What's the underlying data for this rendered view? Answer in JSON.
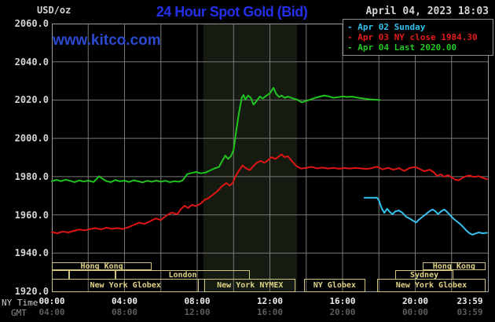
{
  "header": {
    "unit": "USD/oz",
    "title": "24 Hour Spot Gold (Bid)",
    "datetime": "April 04, 2023 18:03",
    "watermark": "www.kitco.com"
  },
  "legend": {
    "items": [
      {
        "label": "- Apr 02 Sunday",
        "color": "#35c0ee"
      },
      {
        "label": "- Apr 03 NY close 1984.30",
        "color": "#e51b1b"
      },
      {
        "label": "- Apr 04 Last 2020.00",
        "color": "#25c725"
      }
    ]
  },
  "axis": {
    "ny_time_label": "NY Time",
    "gmt_label": "GMT",
    "y_ticks": [
      {
        "value": 2060,
        "label": "2060.0"
      },
      {
        "value": 2040,
        "label": "2040.0"
      },
      {
        "value": 2020,
        "label": "2020.0"
      },
      {
        "value": 2000,
        "label": "2000.0"
      },
      {
        "value": 1980,
        "label": "1980.0"
      },
      {
        "value": 1960,
        "label": "1960.0"
      },
      {
        "value": 1940,
        "label": "1940.0"
      },
      {
        "value": 1920,
        "label": "1920.0"
      }
    ],
    "ny_ticks": [
      {
        "hour": 0,
        "label": "00:00"
      },
      {
        "hour": 4,
        "label": "04:00"
      },
      {
        "hour": 8,
        "label": "08:00"
      },
      {
        "hour": 12,
        "label": "12:00"
      },
      {
        "hour": 16,
        "label": "16:00"
      },
      {
        "hour": 20,
        "label": "20:00"
      },
      {
        "hour": 23.983,
        "label": "23:59"
      }
    ],
    "gmt_ticks": [
      {
        "hour": 0,
        "label": "04:00"
      },
      {
        "hour": 4,
        "label": "08:00"
      },
      {
        "hour": 8,
        "label": "12:00"
      },
      {
        "hour": 12,
        "label": "16:00"
      },
      {
        "hour": 16,
        "label": "20:00"
      },
      {
        "hour": 20,
        "label": "00:00"
      },
      {
        "hour": 23.983,
        "label": "03:59"
      }
    ]
  },
  "sessions": [
    {
      "row": 1,
      "start": 0,
      "end": 5.5,
      "label": "Hong Kong"
    },
    {
      "row": 1,
      "start": 20.4,
      "end": 23.87,
      "label": "Hong Kong"
    },
    {
      "row": 2,
      "start": 0,
      "end": 0.95,
      "label": ""
    },
    {
      "row": 2,
      "start": 0.95,
      "end": 3.5,
      "label": ""
    },
    {
      "row": 2,
      "start": 3.5,
      "end": 10.9,
      "label": "London"
    },
    {
      "row": 2,
      "start": 18.9,
      "end": 22.1,
      "label": "Sydney"
    },
    {
      "row": 3,
      "start": 0,
      "end": 8.1,
      "label": "New York Globex"
    },
    {
      "row": 3,
      "start": 8.4,
      "end": 13.42,
      "label": "New York NYMEX"
    },
    {
      "row": 3,
      "start": 13.87,
      "end": 17.25,
      "label": "NY Globex"
    },
    {
      "row": 3,
      "start": 17.9,
      "end": 23.87,
      "label": "New York Globex"
    }
  ],
  "colors": {
    "background": "#000000",
    "grid": "#787878",
    "plot_border": "#9a9a9a",
    "highlight_band": "#151b10",
    "session_box": "#cfc27c",
    "title_blue": "#2430e8"
  },
  "chart_data": {
    "type": "line",
    "title": "24 Hour Spot Gold (Bid)",
    "x_unit": "hours, NY time",
    "x_range": [
      0,
      24
    ],
    "y_range": [
      1920,
      2060
    ],
    "ylabel": "USD/oz",
    "x_gridline_step_hours": 2,
    "y_gridline_step": 20,
    "grid": true,
    "legend_position": "top-right",
    "highlight_band_hours": {
      "start": 8.33,
      "end": 13.5
    },
    "series": [
      {
        "name": "Apr 02 Sunday",
        "color": "#35c0ee",
        "points": [
          [
            17.2,
            1969
          ],
          [
            17.5,
            1969
          ],
          [
            17.9,
            1969
          ],
          [
            18.0,
            1967.5
          ],
          [
            18.15,
            1963.5
          ],
          [
            18.3,
            1961
          ],
          [
            18.45,
            1963.2
          ],
          [
            18.6,
            1961.5
          ],
          [
            18.75,
            1960.3
          ],
          [
            18.9,
            1961.8
          ],
          [
            19.1,
            1962.3
          ],
          [
            19.3,
            1961
          ],
          [
            19.5,
            1959
          ],
          [
            19.7,
            1958
          ],
          [
            19.9,
            1956.8
          ],
          [
            20.05,
            1956
          ],
          [
            20.2,
            1957.5
          ],
          [
            20.4,
            1959
          ],
          [
            20.6,
            1960.5
          ],
          [
            20.8,
            1962
          ],
          [
            20.95,
            1962.8
          ],
          [
            21.1,
            1962
          ],
          [
            21.25,
            1960.4
          ],
          [
            21.45,
            1962
          ],
          [
            21.6,
            1962.8
          ],
          [
            21.75,
            1961.5
          ],
          [
            21.95,
            1959.5
          ],
          [
            22.1,
            1958
          ],
          [
            22.3,
            1956.5
          ],
          [
            22.5,
            1955
          ],
          [
            22.7,
            1953
          ],
          [
            22.85,
            1951.5
          ],
          [
            23.0,
            1950.3
          ],
          [
            23.15,
            1949.6
          ],
          [
            23.3,
            1950.2
          ],
          [
            23.5,
            1950.8
          ],
          [
            23.7,
            1950.4
          ],
          [
            23.95,
            1950.6
          ]
        ]
      },
      {
        "name": "Apr 03 NY close 1984.30",
        "color": "#df1414",
        "points": [
          [
            0,
            1951
          ],
          [
            0.3,
            1950.4
          ],
          [
            0.6,
            1951.3
          ],
          [
            0.9,
            1950.8
          ],
          [
            1.2,
            1951.6
          ],
          [
            1.5,
            1952.3
          ],
          [
            1.8,
            1951.9
          ],
          [
            2.1,
            1952.6
          ],
          [
            2.4,
            1953.1
          ],
          [
            2.7,
            1952.4
          ],
          [
            3,
            1953.3
          ],
          [
            3.3,
            1952.7
          ],
          [
            3.6,
            1953.1
          ],
          [
            3.9,
            1952.6
          ],
          [
            4.2,
            1953.5
          ],
          [
            4.5,
            1954.7
          ],
          [
            4.8,
            1955.9
          ],
          [
            5.1,
            1955.3
          ],
          [
            5.4,
            1956.6
          ],
          [
            5.7,
            1958.1
          ],
          [
            6,
            1957.3
          ],
          [
            6.3,
            1959.6
          ],
          [
            6.6,
            1961.2
          ],
          [
            6.9,
            1960.3
          ],
          [
            7.1,
            1963
          ],
          [
            7.3,
            1964.8
          ],
          [
            7.5,
            1963.6
          ],
          [
            7.7,
            1965.2
          ],
          [
            7.95,
            1964.6
          ],
          [
            8.2,
            1966
          ],
          [
            8.4,
            1967.8
          ],
          [
            8.6,
            1968.6
          ],
          [
            8.85,
            1970.4
          ],
          [
            9.1,
            1972.3
          ],
          [
            9.35,
            1974.8
          ],
          [
            9.6,
            1976.6
          ],
          [
            9.8,
            1975.2
          ],
          [
            9.95,
            1976.8
          ],
          [
            10.1,
            1980
          ],
          [
            10.3,
            1983.2
          ],
          [
            10.5,
            1985.8
          ],
          [
            10.7,
            1984.2
          ],
          [
            10.9,
            1983.4
          ],
          [
            11.1,
            1985.6
          ],
          [
            11.3,
            1987.4
          ],
          [
            11.5,
            1988.2
          ],
          [
            11.7,
            1987.2
          ],
          [
            11.9,
            1988.6
          ],
          [
            12.1,
            1990.2
          ],
          [
            12.3,
            1989.2
          ],
          [
            12.5,
            1990.6
          ],
          [
            12.65,
            1991.6
          ],
          [
            12.8,
            1990.2
          ],
          [
            13,
            1990.6
          ],
          [
            13.2,
            1988.2
          ],
          [
            13.45,
            1985.6
          ],
          [
            13.7,
            1984.2
          ],
          [
            14,
            1984.6
          ],
          [
            14.3,
            1985.1
          ],
          [
            14.6,
            1984.3
          ],
          [
            14.9,
            1984.7
          ],
          [
            15.2,
            1984.2
          ],
          [
            15.5,
            1984.6
          ],
          [
            15.8,
            1984.1
          ],
          [
            16.1,
            1984.5
          ],
          [
            16.4,
            1984.2
          ],
          [
            16.7,
            1984.6
          ],
          [
            17,
            1984.3
          ],
          [
            17.3,
            1984
          ],
          [
            17.6,
            1984.4
          ],
          [
            17.9,
            1985.2
          ],
          [
            18.2,
            1983.8
          ],
          [
            18.5,
            1984.6
          ],
          [
            18.8,
            1983.6
          ],
          [
            19.1,
            1984.4
          ],
          [
            19.4,
            1983
          ],
          [
            19.7,
            1984.6
          ],
          [
            20,
            1985
          ],
          [
            20.2,
            1984.2
          ],
          [
            20.5,
            1982.8
          ],
          [
            20.8,
            1983.6
          ],
          [
            21,
            1982.4
          ],
          [
            21.2,
            1980.4
          ],
          [
            21.4,
            1981.2
          ],
          [
            21.6,
            1979.9
          ],
          [
            21.8,
            1980.8
          ],
          [
            22,
            1979.6
          ],
          [
            22.2,
            1978.4
          ],
          [
            22.4,
            1978.1
          ],
          [
            22.6,
            1979.4
          ],
          [
            22.8,
            1980.2
          ],
          [
            23,
            1980.6
          ],
          [
            23.2,
            1979.8
          ],
          [
            23.5,
            1980.2
          ],
          [
            23.7,
            1979.4
          ],
          [
            23.95,
            1978.6
          ]
        ]
      },
      {
        "name": "Apr 04 Last 2020.00",
        "color": "#1fc41f",
        "points": [
          [
            0,
            1977.6
          ],
          [
            0.25,
            1978.3
          ],
          [
            0.5,
            1977.6
          ],
          [
            0.75,
            1978.4
          ],
          [
            1,
            1977.8
          ],
          [
            1.25,
            1977.1
          ],
          [
            1.5,
            1978
          ],
          [
            1.75,
            1977.4
          ],
          [
            2,
            1977.9
          ],
          [
            2.3,
            1977.2
          ],
          [
            2.6,
            1980.2
          ],
          [
            2.8,
            1978.8
          ],
          [
            3,
            1977.6
          ],
          [
            3.25,
            1977.1
          ],
          [
            3.5,
            1978.2
          ],
          [
            3.75,
            1977.5
          ],
          [
            4,
            1977.9
          ],
          [
            4.25,
            1977.2
          ],
          [
            4.5,
            1978.1
          ],
          [
            4.75,
            1977.5
          ],
          [
            5,
            1977
          ],
          [
            5.25,
            1977.8
          ],
          [
            5.5,
            1977.3
          ],
          [
            5.75,
            1977.9
          ],
          [
            6,
            1977.3
          ],
          [
            6.25,
            1977.8
          ],
          [
            6.5,
            1977.1
          ],
          [
            6.75,
            1977.6
          ],
          [
            7,
            1977.3
          ],
          [
            7.2,
            1978
          ],
          [
            7.45,
            1981.3
          ],
          [
            7.7,
            1981.9
          ],
          [
            7.95,
            1982.4
          ],
          [
            8.2,
            1981.7
          ],
          [
            8.45,
            1982.1
          ],
          [
            8.7,
            1983.2
          ],
          [
            8.95,
            1984.3
          ],
          [
            9.2,
            1985.1
          ],
          [
            9.4,
            1988.6
          ],
          [
            9.55,
            1991
          ],
          [
            9.7,
            1989.2
          ],
          [
            9.85,
            1990.6
          ],
          [
            10,
            1994
          ],
          [
            10.15,
            2004
          ],
          [
            10.3,
            2013.5
          ],
          [
            10.45,
            2021.3
          ],
          [
            10.55,
            2022.6
          ],
          [
            10.65,
            2020.2
          ],
          [
            10.8,
            2022.4
          ],
          [
            10.95,
            2021.2
          ],
          [
            11.1,
            2017.6
          ],
          [
            11.25,
            2019.3
          ],
          [
            11.45,
            2021.9
          ],
          [
            11.6,
            2020.8
          ],
          [
            11.8,
            2022.3
          ],
          [
            12,
            2023.6
          ],
          [
            12.2,
            2026.4
          ],
          [
            12.35,
            2023.2
          ],
          [
            12.5,
            2021.6
          ],
          [
            12.65,
            2022.4
          ],
          [
            12.8,
            2021.2
          ],
          [
            13,
            2021.8
          ],
          [
            13.25,
            2020.9
          ],
          [
            13.5,
            2020.2
          ],
          [
            13.75,
            2018.8
          ],
          [
            14,
            2019.6
          ],
          [
            14.25,
            2020.3
          ],
          [
            14.5,
            2021.2
          ],
          [
            14.75,
            2021.8
          ],
          [
            15,
            2022.4
          ],
          [
            15.25,
            2021.9
          ],
          [
            15.5,
            2021.2
          ],
          [
            15.75,
            2021.5
          ],
          [
            16,
            2021.9
          ],
          [
            16.25,
            2021.6
          ],
          [
            16.5,
            2021.8
          ],
          [
            16.75,
            2021.4
          ],
          [
            17,
            2021
          ],
          [
            17.25,
            2020.7
          ],
          [
            17.5,
            2020.4
          ],
          [
            17.75,
            2020.2
          ],
          [
            18.05,
            2020
          ]
        ]
      }
    ]
  }
}
